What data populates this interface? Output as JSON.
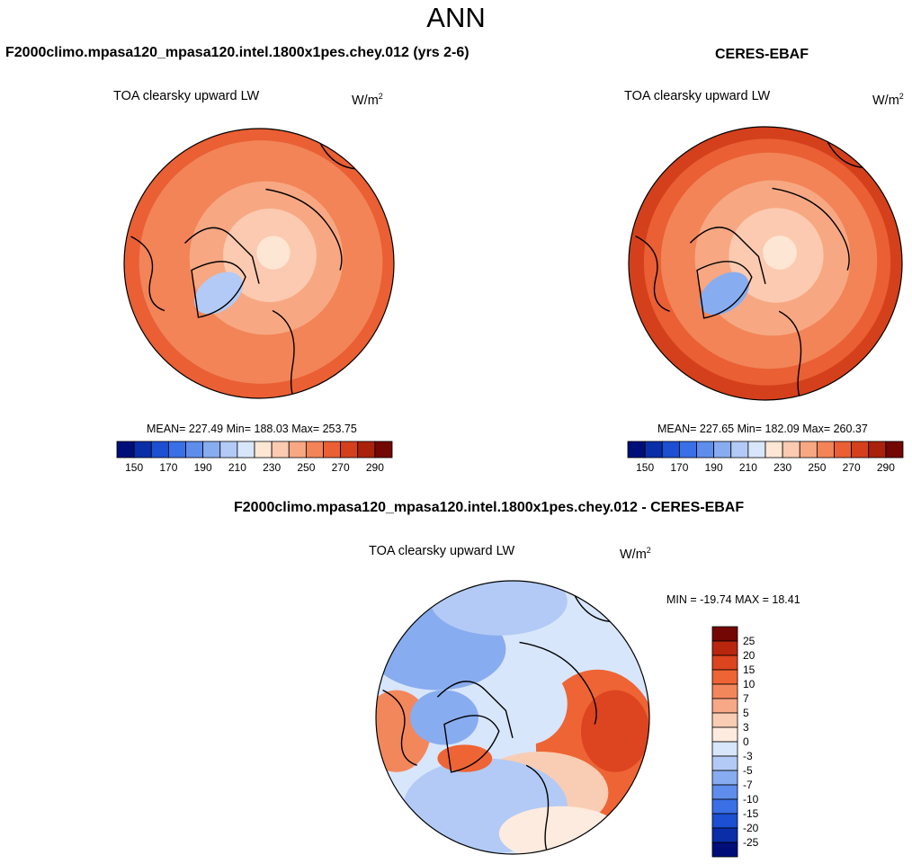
{
  "figure": {
    "title": "ANN"
  },
  "chart_data": [
    {
      "type": "heatmap",
      "projection": "north polar stereographic",
      "panel_title": "F2000climo.mpasa120_mpasa120.intel.1800x1pes.chey.012 (yrs 2-6)",
      "variable": "TOA clearsky upward LW",
      "units_base": "W/m",
      "units_exp": "2",
      "stats_text": "MEAN= 227.49  Min= 188.03  Max= 253.75",
      "mean": 227.49,
      "min": 188.03,
      "max": 253.75,
      "pole_value": 218,
      "ice_sheet_value": 196,
      "colorbar": {
        "orientation": "horizontal",
        "levels": [
          140,
          150,
          160,
          170,
          180,
          190,
          200,
          210,
          220,
          230,
          240,
          250,
          260,
          270,
          280,
          290
        ],
        "tick_labels": [
          "150",
          "170",
          "190",
          "210",
          "230",
          "250",
          "270",
          "290"
        ],
        "colors": [
          "#000e7a",
          "#0a2ea8",
          "#1c4fd1",
          "#3a6fe6",
          "#5e8dec",
          "#88acf0",
          "#b2caf5",
          "#d8e6fb",
          "#fde6d4",
          "#fbcab0",
          "#f7a882",
          "#f28458",
          "#ea5f34",
          "#d4401c",
          "#aa220c",
          "#730703"
        ]
      }
    },
    {
      "type": "heatmap",
      "projection": "north polar stereographic",
      "panel_title": "CERES-EBAF",
      "variable": "TOA clearsky upward LW",
      "units_base": "W/m",
      "units_exp": "2",
      "stats_text": "MEAN= 227.65  Min= 182.09  Max= 260.37",
      "mean": 227.65,
      "min": 182.09,
      "max": 260.37,
      "pole_value": 218,
      "ice_sheet_value": 188,
      "colorbar": {
        "orientation": "horizontal",
        "levels": [
          140,
          150,
          160,
          170,
          180,
          190,
          200,
          210,
          220,
          230,
          240,
          250,
          260,
          270,
          280,
          290
        ],
        "tick_labels": [
          "150",
          "170",
          "190",
          "210",
          "230",
          "250",
          "270",
          "290"
        ],
        "colors": [
          "#000e7a",
          "#0a2ea8",
          "#1c4fd1",
          "#3a6fe6",
          "#5e8dec",
          "#88acf0",
          "#b2caf5",
          "#d8e6fb",
          "#fde6d4",
          "#fbcab0",
          "#f7a882",
          "#f28458",
          "#ea5f34",
          "#d4401c",
          "#aa220c",
          "#730703"
        ]
      }
    },
    {
      "type": "heatmap",
      "projection": "north polar stereographic",
      "panel_title": "F2000climo.mpasa120_mpasa120.intel.1800x1pes.chey.012 - CERES-EBAF",
      "variable": "TOA clearsky upward LW",
      "units_base": "W/m",
      "units_exp": "2",
      "stats_text": "MIN = -19.74 MAX =  18.41",
      "min": -19.74,
      "max": 18.41,
      "colorbar": {
        "orientation": "vertical",
        "levels": [
          -25,
          -20,
          -15,
          -10,
          -7,
          -5,
          -3,
          0,
          3,
          5,
          7,
          10,
          15,
          20,
          25
        ],
        "tick_labels": [
          "25",
          "20",
          "15",
          "10",
          "7",
          "5",
          "3",
          "0",
          "-3",
          "-5",
          "-7",
          "-10",
          "-15",
          "-20",
          "-25"
        ],
        "colors": [
          "#730703",
          "#b8260e",
          "#dd4420",
          "#ee6434",
          "#f3875c",
          "#f6a887",
          "#f9cdb4",
          "#fdebdf",
          "#d8e6fb",
          "#b2caf5",
          "#88acf0",
          "#5e8dec",
          "#3a6fe6",
          "#1c4fd1",
          "#0a2ea8",
          "#000e7a"
        ]
      }
    }
  ]
}
